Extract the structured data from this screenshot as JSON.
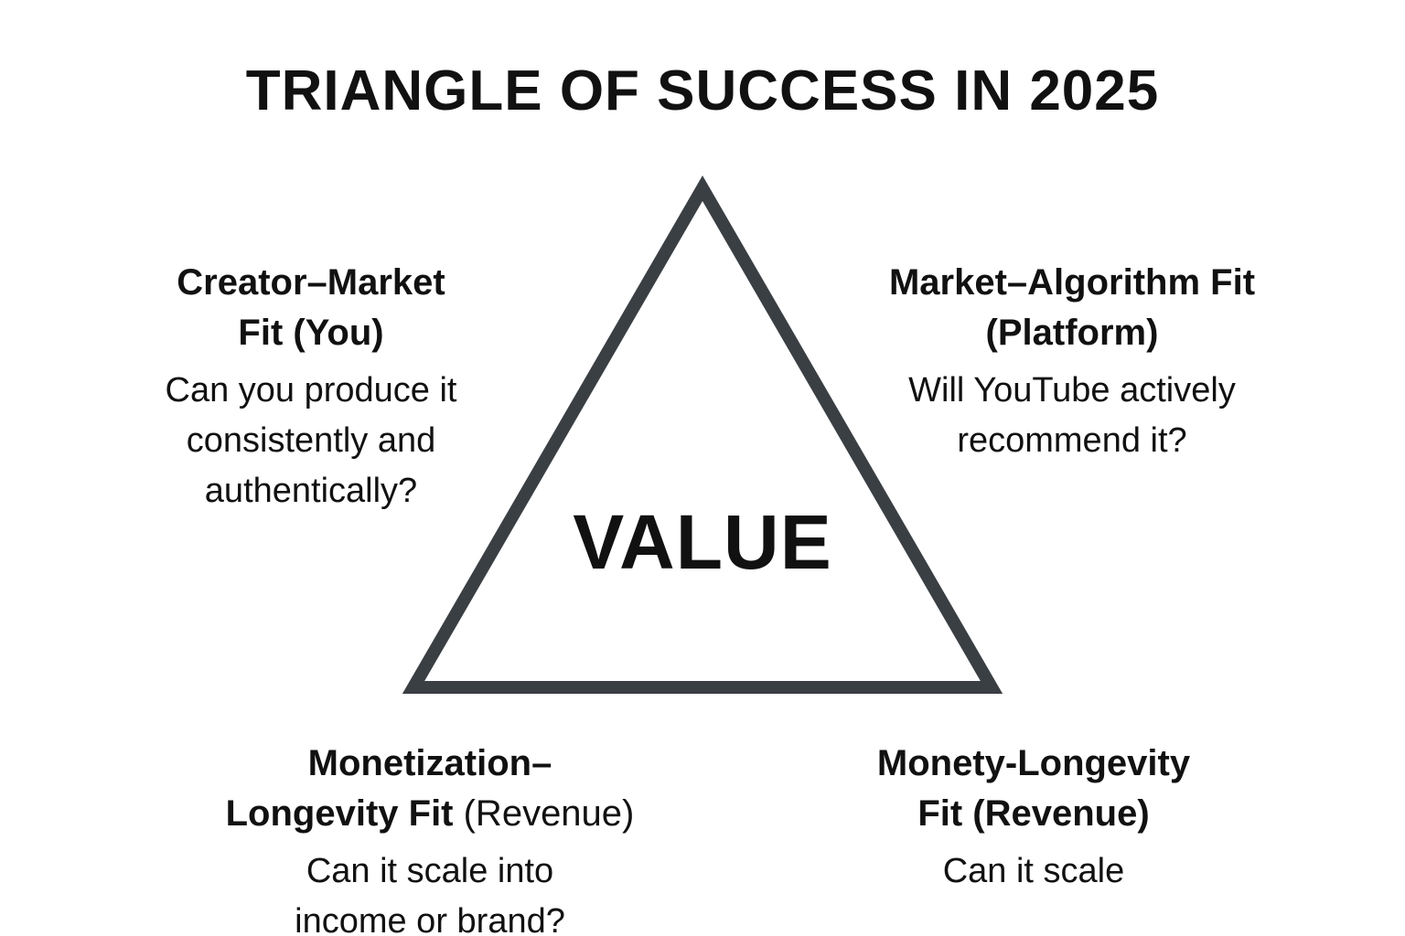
{
  "title": "TRIANGLE OF SUCCESS IN 2025",
  "center": "VALUE",
  "colors": {
    "triangle_stroke": "#3a3f44",
    "text": "#111111",
    "background": "#ffffff"
  },
  "blocks": {
    "top_left": {
      "heading_line1": "Creator–Market",
      "heading_line2": "Fit (You)",
      "desc": [
        "Can you produce it",
        "consistently and",
        "authentically?"
      ]
    },
    "top_right": {
      "heading_line1": "Market–Algorithm Fit",
      "heading_line2": "(Platform)",
      "desc": [
        "Will YouTube actively",
        "recommend it?"
      ]
    },
    "bottom_left": {
      "heading_line1": "Monetization–",
      "heading_line2_bold": "Longevity Fit ",
      "heading_line2_light": "(Revenue)",
      "desc": [
        "Can it scale into",
        "income or brand?"
      ]
    },
    "bottom_right": {
      "heading_line1": "Monety-Longevity",
      "heading_line2": "Fit (Revenue)",
      "desc": [
        "Can it scale"
      ]
    }
  }
}
